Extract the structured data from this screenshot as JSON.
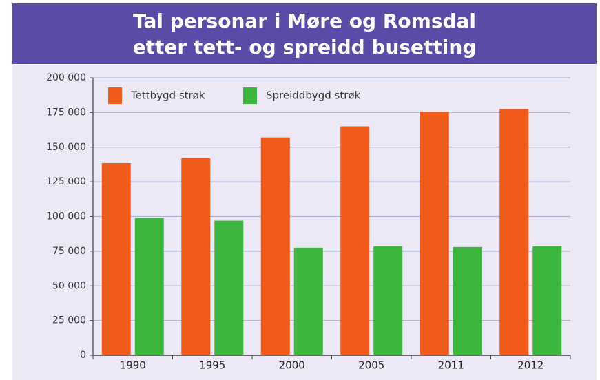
{
  "chart_data": {
    "type": "bar",
    "title": [
      "Tal personar i Møre og Romsdal",
      "etter tett- og spreidd busetting"
    ],
    "categories": [
      "1990",
      "1995",
      "2000",
      "2005",
      "2011",
      "2012"
    ],
    "series": [
      {
        "name": "Tettbygd strøk",
        "color": "#f05a1a",
        "values": [
          138500,
          142000,
          157000,
          165000,
          175500,
          177500
        ]
      },
      {
        "name": "Spreiddbygd strøk",
        "color": "#3cb63c",
        "values": [
          99000,
          97000,
          77500,
          78500,
          78000,
          78500
        ]
      }
    ],
    "ylim": [
      0,
      200000
    ],
    "yticks": [
      0,
      {
        "value": 25000,
        "label": "25 000"
      },
      {
        "value": 50000,
        "label": "50 000"
      },
      {
        "value": 75000,
        "label": "75 000"
      },
      {
        "value": 100000,
        "label": "100 000"
      },
      {
        "value": 125000,
        "label": "125 000"
      },
      {
        "value": 150000,
        "label": "150 000"
      },
      {
        "value": 175000,
        "label": "175 000"
      },
      {
        "value": 200000,
        "label": "200 000"
      }
    ],
    "grid": true,
    "legend": "top-left"
  }
}
